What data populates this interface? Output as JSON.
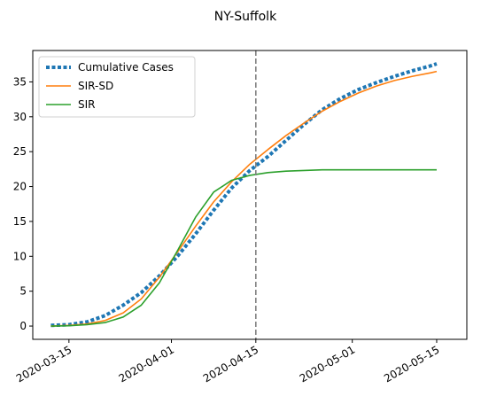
{
  "chart_data": {
    "type": "line",
    "title": "NY-Suffolk",
    "xlabel": "",
    "ylabel": "",
    "x_axis": {
      "type": "date",
      "range": [
        "2020-03-09",
        "2020-05-20"
      ],
      "tick_values": [
        "2020-03-15",
        "2020-04-01",
        "2020-04-15",
        "2020-05-01",
        "2020-05-15"
      ],
      "tick_labels": [
        "2020-03-15",
        "2020-04-01",
        "2020-04-15",
        "2020-05-01",
        "2020-05-15"
      ]
    },
    "y_axis": {
      "range": [
        -1.9,
        39.5
      ],
      "tick_values": [
        0,
        5,
        10,
        15,
        20,
        25,
        30,
        35
      ],
      "tick_labels": [
        "0",
        "5",
        "10",
        "15",
        "20",
        "25",
        "30",
        "35"
      ]
    },
    "grid": false,
    "legend": {
      "position": "top-left",
      "entries": [
        "Cumulative Cases",
        "SIR-SD",
        "SIR"
      ]
    },
    "vertical_line": {
      "x": "2020-04-15",
      "style": "dashed",
      "color": "#808080"
    },
    "series": [
      {
        "name": "Cumulative Cases",
        "color": "#1f77b4",
        "style": "dotted",
        "x": [
          "2020-03-12",
          "2020-03-15",
          "2020-03-18",
          "2020-03-21",
          "2020-03-24",
          "2020-03-27",
          "2020-03-30",
          "2020-04-02",
          "2020-04-05",
          "2020-04-08",
          "2020-04-11",
          "2020-04-14",
          "2020-04-17",
          "2020-04-20",
          "2020-04-23",
          "2020-04-26",
          "2020-04-29",
          "2020-05-02",
          "2020-05-05",
          "2020-05-08",
          "2020-05-11",
          "2020-05-14",
          "2020-05-15"
        ],
        "values": [
          0.1,
          0.2,
          0.6,
          1.5,
          3.0,
          4.8,
          7.2,
          10.0,
          13.2,
          16.6,
          19.8,
          22.3,
          24.3,
          26.6,
          28.9,
          31.0,
          32.6,
          33.9,
          34.9,
          35.8,
          36.6,
          37.3,
          37.6
        ]
      },
      {
        "name": "SIR-SD",
        "color": "#ff7f0e",
        "style": "solid",
        "x": [
          "2020-03-12",
          "2020-03-15",
          "2020-03-18",
          "2020-03-21",
          "2020-03-24",
          "2020-03-27",
          "2020-03-30",
          "2020-04-02",
          "2020-04-05",
          "2020-04-08",
          "2020-04-11",
          "2020-04-14",
          "2020-04-17",
          "2020-04-20",
          "2020-04-23",
          "2020-04-26",
          "2020-04-29",
          "2020-05-02",
          "2020-05-05",
          "2020-05-08",
          "2020-05-11",
          "2020-05-14",
          "2020-05-15"
        ],
        "values": [
          0.0,
          0.1,
          0.3,
          0.8,
          1.9,
          3.9,
          7.0,
          10.6,
          14.3,
          17.8,
          20.7,
          23.2,
          25.3,
          27.3,
          29.1,
          30.8,
          32.2,
          33.4,
          34.4,
          35.2,
          35.8,
          36.3,
          36.5
        ]
      },
      {
        "name": "SIR",
        "color": "#2ca02c",
        "style": "solid",
        "x": [
          "2020-03-12",
          "2020-03-15",
          "2020-03-18",
          "2020-03-21",
          "2020-03-24",
          "2020-03-27",
          "2020-03-30",
          "2020-04-02",
          "2020-04-05",
          "2020-04-08",
          "2020-04-11",
          "2020-04-14",
          "2020-04-17",
          "2020-04-20",
          "2020-04-23",
          "2020-04-26",
          "2020-04-29",
          "2020-05-02",
          "2020-05-05",
          "2020-05-08",
          "2020-05-11",
          "2020-05-14",
          "2020-05-15"
        ],
        "values": [
          0.0,
          0.05,
          0.2,
          0.5,
          1.3,
          3.0,
          6.2,
          10.8,
          15.6,
          19.2,
          20.9,
          21.6,
          22.0,
          22.2,
          22.3,
          22.4,
          22.4,
          22.4,
          22.4,
          22.4,
          22.4,
          22.4,
          22.4
        ]
      }
    ]
  }
}
